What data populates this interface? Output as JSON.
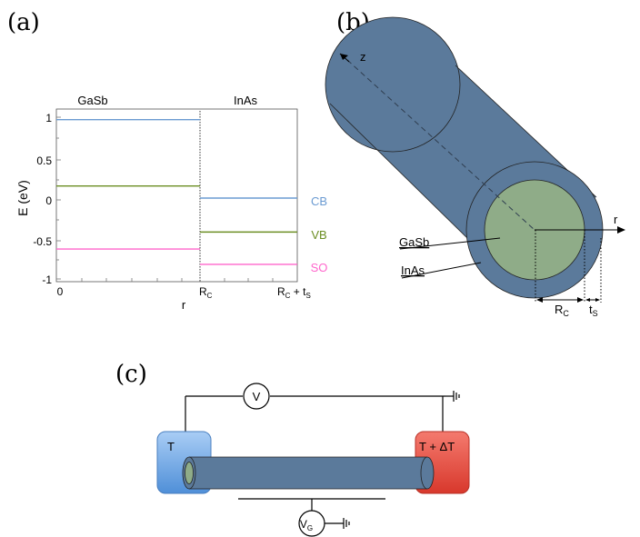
{
  "panel_a": {
    "tag": "(a)",
    "region_left": "GaSb",
    "region_right": "InAs",
    "ylabel": "E (eV)",
    "xlabel": "r",
    "yticks": [
      "1",
      "0.5",
      "0",
      "-0.5",
      "-1"
    ],
    "xtick_0": "0",
    "xtick_rc_main": "R",
    "xtick_rc_sub": "C",
    "xtick_end_main": "R",
    "xtick_end_sub": "C",
    "xtick_end_plus": " + t",
    "xtick_end_sub2": "S",
    "band_labels": {
      "cb": "CB",
      "vb": "VB",
      "so": "SO"
    },
    "colors": {
      "cb": "#6b9bd2",
      "vb": "#6b8e23",
      "so": "#ff66cc"
    }
  },
  "chart_data": {
    "type": "line",
    "xlabel": "r",
    "ylabel": "E (eV)",
    "ylim": [
      -1.05,
      1.1
    ],
    "x_ticks": [
      "0",
      "R_C",
      "R_C + t_S"
    ],
    "series": [
      {
        "name": "CB",
        "segments": [
          {
            "x": [
              "0",
              "R_C"
            ],
            "y": 0.97
          },
          {
            "x": [
              "R_C",
              "R_C + t_S"
            ],
            "y": 0.0
          }
        ]
      },
      {
        "name": "VB",
        "segments": [
          {
            "x": [
              "0",
              "R_C"
            ],
            "y": 0.15
          },
          {
            "x": [
              "R_C",
              "R_C + t_S"
            ],
            "y": -0.42
          }
        ]
      },
      {
        "name": "SO",
        "segments": [
          {
            "x": [
              "0",
              "R_C"
            ],
            "y": -0.63
          },
          {
            "x": [
              "R_C",
              "R_C + t_S"
            ],
            "y": -0.82
          }
        ]
      }
    ]
  },
  "panel_b": {
    "tag": "(b)",
    "axis_z": "z",
    "axis_r": "r",
    "label_gasb": "GaSb",
    "label_inas": "InAs",
    "rc_main": "R",
    "rc_sub": "C",
    "ts_main": "t",
    "ts_sub": "S",
    "colors": {
      "shell": "#5b7a9b",
      "core": "#8fac88"
    }
  },
  "panel_c": {
    "tag": "(c)",
    "voltmeter": "V",
    "left_contact": "T",
    "right_contact": "T + ΔT",
    "gate_main": "V",
    "gate_sub": "G",
    "colors": {
      "left_contact": "#6fa8dc",
      "right_contact": "#e8443a"
    }
  }
}
